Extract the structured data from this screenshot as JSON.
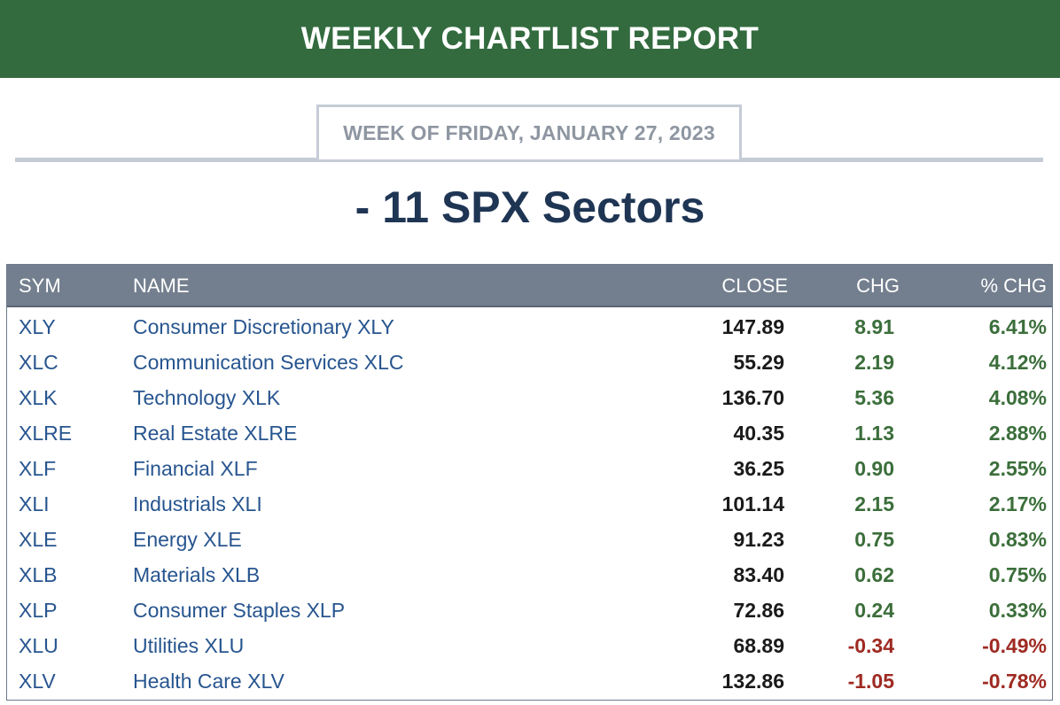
{
  "banner": {
    "title": "WEEKLY CHARTLIST REPORT"
  },
  "week": {
    "label": "WEEK OF FRIDAY, JANUARY 27, 2023"
  },
  "page_title": "- 11 SPX Sectors",
  "colors": {
    "banner": "#336b3f",
    "header": "#737f8e",
    "positive": "#3b6e3b",
    "negative": "#9e2a22",
    "link": "#27558f"
  },
  "table": {
    "headers": {
      "sym": "SYM",
      "name": "NAME",
      "close": "CLOSE",
      "chg": "CHG",
      "pct": "% CHG"
    },
    "rows": [
      {
        "sym": "XLY",
        "name": "Consumer Discretionary XLY",
        "close": "147.89",
        "chg": "8.91",
        "pct": "6.41%"
      },
      {
        "sym": "XLC",
        "name": "Communication Services XLC",
        "close": "55.29",
        "chg": "2.19",
        "pct": "4.12%"
      },
      {
        "sym": "XLK",
        "name": "Technology XLK",
        "close": "136.70",
        "chg": "5.36",
        "pct": "4.08%"
      },
      {
        "sym": "XLRE",
        "name": "Real Estate XLRE",
        "close": "40.35",
        "chg": "1.13",
        "pct": "2.88%"
      },
      {
        "sym": "XLF",
        "name": "Financial XLF",
        "close": "36.25",
        "chg": "0.90",
        "pct": "2.55%"
      },
      {
        "sym": "XLI",
        "name": "Industrials XLI",
        "close": "101.14",
        "chg": "2.15",
        "pct": "2.17%"
      },
      {
        "sym": "XLE",
        "name": "Energy XLE",
        "close": "91.23",
        "chg": "0.75",
        "pct": "0.83%"
      },
      {
        "sym": "XLB",
        "name": "Materials XLB",
        "close": "83.40",
        "chg": "0.62",
        "pct": "0.75%"
      },
      {
        "sym": "XLP",
        "name": "Consumer Staples XLP",
        "close": "72.86",
        "chg": "0.24",
        "pct": "0.33%"
      },
      {
        "sym": "XLU",
        "name": "Utilities XLU",
        "close": "68.89",
        "chg": "-0.34",
        "pct": "-0.49%"
      },
      {
        "sym": "XLV",
        "name": "Health Care XLV",
        "close": "132.86",
        "chg": "-1.05",
        "pct": "-0.78%"
      }
    ]
  }
}
